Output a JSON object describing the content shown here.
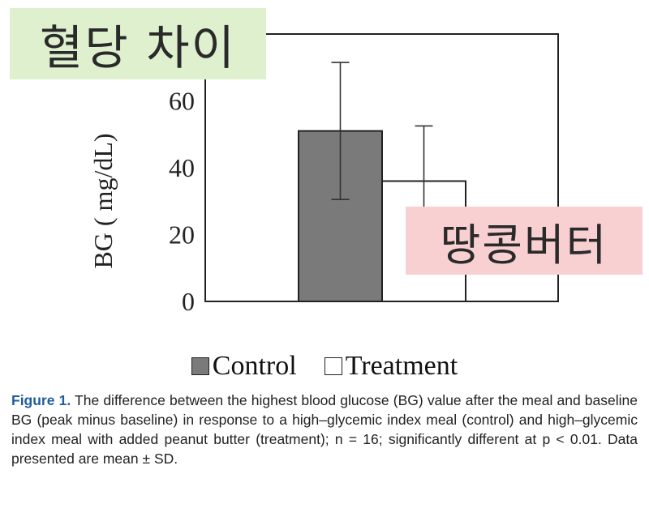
{
  "chart_data": {
    "type": "bar",
    "ylabel": "BG ( mg/dL)",
    "ylim": [
      0,
      80
    ],
    "yticks": [
      "0",
      "20",
      "40",
      "60"
    ],
    "grid": false,
    "legend_position": "bottom",
    "series": [
      {
        "name": "Control",
        "values": [
          51
        ],
        "error": [
          20.5
        ],
        "color": "#7a7a7a"
      },
      {
        "name": "Treatment",
        "values": [
          36
        ],
        "error": [
          16.5
        ],
        "color": "#ffffff"
      }
    ]
  },
  "overlays": {
    "top_left_label": "혈당 차이",
    "right_label": "땅콩버터"
  },
  "caption": {
    "label": "Figure 1.",
    "text": " The difference between the highest blood glucose (BG) value after the meal and baseline BG (peak minus baseline) in response to a high–glycemic index meal (control) and high–glycemic index meal with added peanut butter (treatment); n = 16; significantly different at p < 0.01. Data presented are mean ± SD."
  }
}
